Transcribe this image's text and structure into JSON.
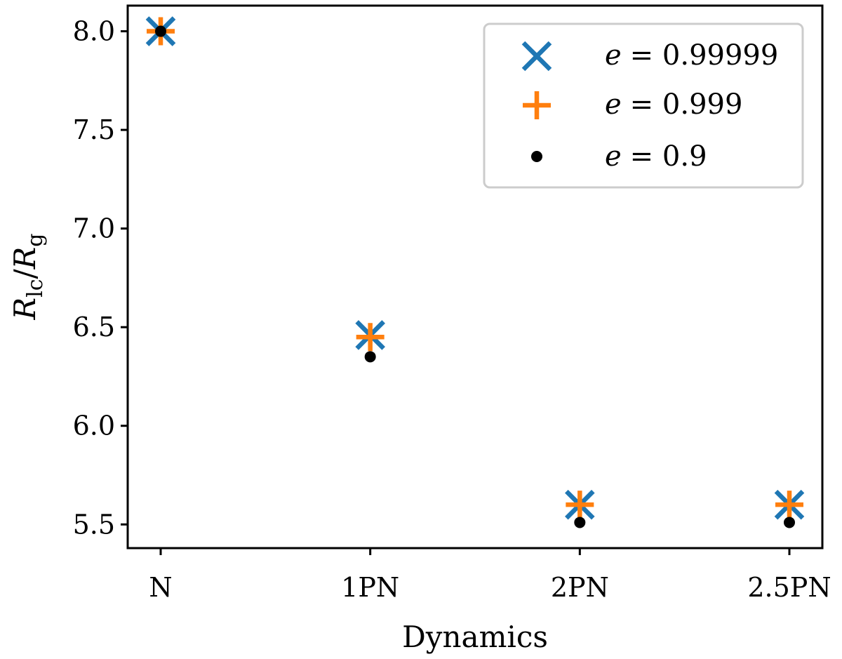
{
  "chart_data": {
    "type": "scatter",
    "categories": [
      "N",
      "1PN",
      "2PN",
      "2.5PN"
    ],
    "xlabel": "Dynamics",
    "ylabel": {
      "main": "R",
      "sub1": "lc",
      "sep": "/",
      "main2": "R",
      "sub2": "g"
    },
    "ylim": [
      5.38,
      8.13
    ],
    "yticks": [
      "5.5",
      "6.0",
      "6.5",
      "7.0",
      "7.5",
      "8.0"
    ],
    "grid": false,
    "legend_position": "top-right",
    "series": [
      {
        "name": "e = 0.99999",
        "name_var": "e",
        "name_val": "= 0.99999",
        "marker": "x",
        "color": "#1f77b4",
        "values": [
          8.0,
          6.46,
          5.6,
          5.6
        ]
      },
      {
        "name": "e = 0.999",
        "name_var": "e",
        "name_val": "= 0.999",
        "marker": "plus",
        "color": "#ff7f0e",
        "values": [
          8.0,
          6.45,
          5.6,
          5.6
        ]
      },
      {
        "name": "e = 0.9",
        "name_var": "e",
        "name_val": "= 0.9",
        "marker": "dot",
        "color": "#000000",
        "values": [
          8.0,
          6.35,
          5.51,
          5.51
        ]
      }
    ]
  }
}
